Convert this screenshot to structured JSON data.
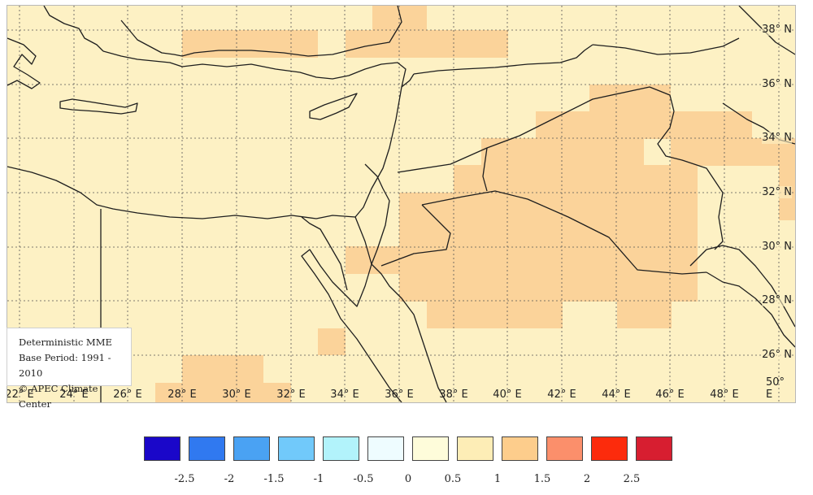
{
  "info_box": {
    "line1": "Deterministic MME",
    "line2": "Base Period: 1991 - 2010",
    "line3": "© APEC Climate Center"
  },
  "lat_labels": [
    "38° N",
    "36° N",
    "34° N",
    "32° N",
    "30° N",
    "28° N",
    "26° N"
  ],
  "lon_labels": [
    "22° E",
    "24° E",
    "26° E",
    "28° E",
    "30° E",
    "32° E",
    "34° E",
    "36° E",
    "38° E",
    "40° E",
    "42° E",
    "44° E",
    "46° E",
    "48° E",
    "50° E"
  ],
  "legend": {
    "colors": [
      "#1a07c9",
      "#3079f0",
      "#4aa2f3",
      "#71c9fa",
      "#b2f3fb",
      "#eefcff",
      "#fefcda",
      "#fdedb6",
      "#fdcd8c",
      "#fb8f6b",
      "#fc2b0c",
      "#d71e30"
    ],
    "ticks": [
      "-2.5",
      "-2",
      "-1.5",
      "-1",
      "-0.5",
      "0",
      "0.5",
      "1",
      "1.5",
      "2",
      "2.5"
    ]
  },
  "colors": {
    "base_fill": "#fdf1c4",
    "anomaly_fill": "#fbd39a",
    "coast": "#1e1e1e",
    "grid": "#555555"
  }
}
